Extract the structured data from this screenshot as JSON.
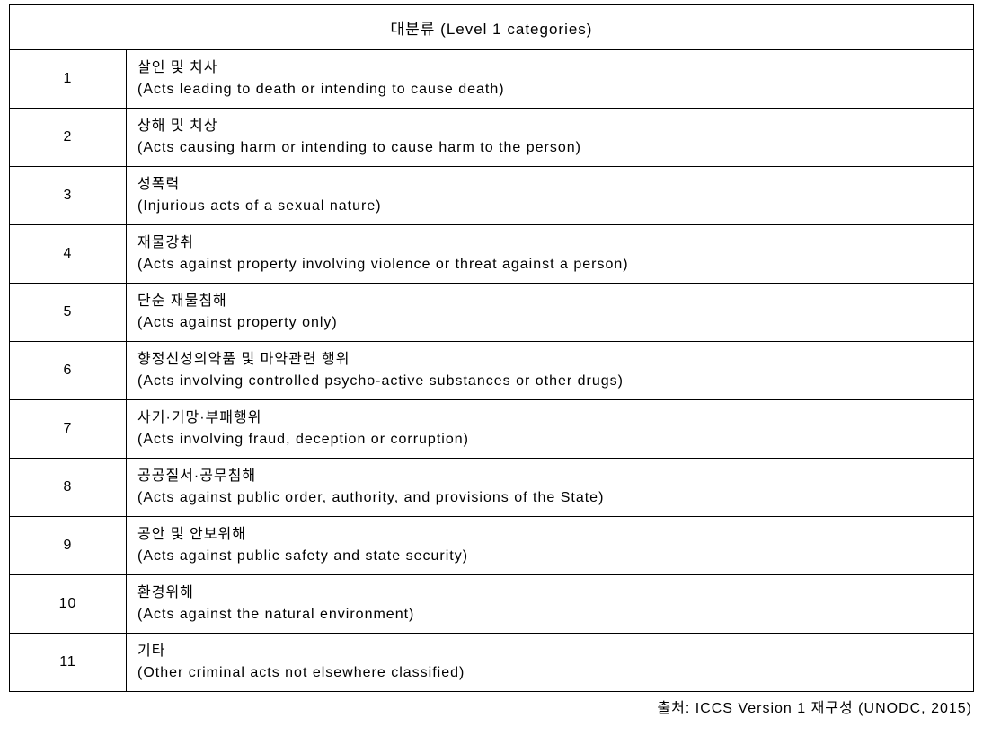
{
  "table": {
    "header": "대분류 (Level 1 categories)",
    "columns": [
      "number",
      "description"
    ],
    "rows": [
      {
        "num": "1",
        "ko": "살인 및 치사",
        "en": "(Acts leading to death or intending to cause death)"
      },
      {
        "num": "2",
        "ko": "상해 및 치상",
        "en": "(Acts causing harm or intending to cause harm to the person)"
      },
      {
        "num": "3",
        "ko": "성폭력",
        "en": "(Injurious acts of a sexual nature)"
      },
      {
        "num": "4",
        "ko": "재물강취",
        "en": "(Acts against property involving violence or threat against a person)"
      },
      {
        "num": "5",
        "ko": "단순 재물침해",
        "en": "(Acts against property only)"
      },
      {
        "num": "6",
        "ko": "향정신성의약품 및 마약관련 행위",
        "en": "(Acts involving controlled psycho-active substances or other drugs)"
      },
      {
        "num": "7",
        "ko": "사기·기망·부패행위",
        "en": "(Acts involving fraud, deception or corruption)"
      },
      {
        "num": "8",
        "ko": "공공질서·공무침해",
        "en": "(Acts against public order, authority, and provisions of the State)"
      },
      {
        "num": "9",
        "ko": "공안 및 안보위해",
        "en": "(Acts against public safety and state security)"
      },
      {
        "num": "10",
        "ko": "환경위해",
        "en": "(Acts against the natural environment)"
      },
      {
        "num": "11",
        "ko": "기타",
        "en": "(Other criminal acts not elsewhere classified)"
      }
    ]
  },
  "source": "출처: ICCS Version 1 재구성 (UNODC, 2015)",
  "styling": {
    "background_color": "#ffffff",
    "border_color": "#000000",
    "text_color": "#000000",
    "font_family": "Malgun Gothic",
    "header_fontsize": 17,
    "cell_fontsize": 16,
    "source_fontsize": 16,
    "num_col_width": 130,
    "letter_spacing": 1
  }
}
